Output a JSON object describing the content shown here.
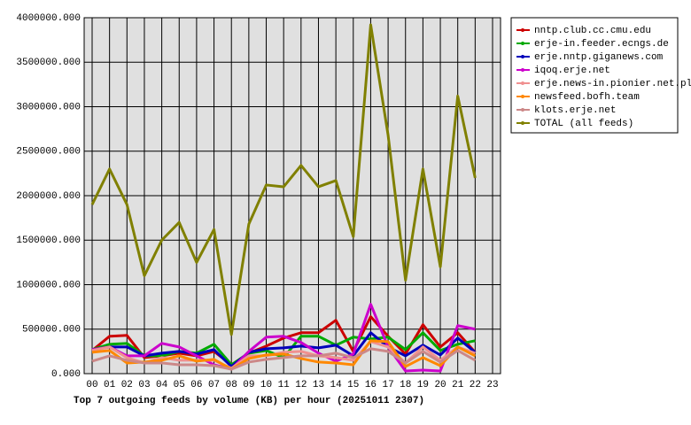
{
  "chart_data": {
    "type": "line",
    "title": "Top 7 outgoing feeds by volume (KB) per hour (20251011 2307)",
    "categories": [
      "00",
      "01",
      "02",
      "03",
      "04",
      "05",
      "06",
      "07",
      "08",
      "09",
      "10",
      "11",
      "12",
      "13",
      "14",
      "15",
      "16",
      "17",
      "18",
      "19",
      "20",
      "21",
      "22",
      "23"
    ],
    "ylim": [
      0,
      4000000
    ],
    "yticks": [
      {
        "value": 0,
        "label": "0.000"
      },
      {
        "value": 500000,
        "label": "500000.000"
      },
      {
        "value": 1000000,
        "label": "1000000.000"
      },
      {
        "value": 1500000,
        "label": "1500000.000"
      },
      {
        "value": 2000000,
        "label": "2000000.000"
      },
      {
        "value": 2500000,
        "label": "2500000.000"
      },
      {
        "value": 3000000,
        "label": "3000000.000"
      },
      {
        "value": 3500000,
        "label": "3500000.000"
      },
      {
        "value": 4000000,
        "label": "4000000.000"
      }
    ],
    "grid": true,
    "legend": "right",
    "series": [
      {
        "name": "nntp.club.cc.cmu.edu",
        "color": "#cc0000",
        "values": [
          260000,
          420000,
          430000,
          180000,
          200000,
          230000,
          200000,
          250000,
          100000,
          230000,
          310000,
          400000,
          460000,
          460000,
          600000,
          250000,
          640000,
          420000,
          220000,
          550000,
          300000,
          460000,
          240000,
          null
        ]
      },
      {
        "name": "erje-in.feeder.ecngs.de",
        "color": "#00aa00",
        "values": [
          270000,
          330000,
          340000,
          200000,
          200000,
          250000,
          230000,
          330000,
          100000,
          230000,
          260000,
          180000,
          420000,
          420000,
          320000,
          410000,
          390000,
          410000,
          270000,
          460000,
          260000,
          330000,
          370000,
          null
        ]
      },
      {
        "name": "erje.nntp.giganews.com",
        "color": "#0000bb",
        "values": [
          270000,
          300000,
          300000,
          200000,
          230000,
          250000,
          220000,
          270000,
          80000,
          240000,
          280000,
          290000,
          310000,
          290000,
          320000,
          200000,
          460000,
          300000,
          200000,
          320000,
          210000,
          400000,
          240000,
          null
        ]
      },
      {
        "name": "iqoq.erje.net",
        "color": "#cc00cc",
        "values": [
          270000,
          300000,
          200000,
          200000,
          340000,
          300000,
          200000,
          100000,
          50000,
          250000,
          410000,
          420000,
          350000,
          230000,
          140000,
          220000,
          780000,
          300000,
          30000,
          40000,
          30000,
          540000,
          500000,
          null
        ]
      },
      {
        "name": "erje.news-in.pionier.net.pl",
        "color": "#f09090",
        "values": [
          260000,
          300000,
          180000,
          120000,
          180000,
          150000,
          150000,
          150000,
          60000,
          200000,
          200000,
          240000,
          250000,
          200000,
          180000,
          150000,
          360000,
          300000,
          120000,
          300000,
          150000,
          300000,
          230000,
          null
        ]
      },
      {
        "name": "newsfeed.bofh.team",
        "color": "#ff8800",
        "values": [
          240000,
          260000,
          120000,
          130000,
          150000,
          200000,
          140000,
          160000,
          50000,
          170000,
          210000,
          220000,
          170000,
          130000,
          120000,
          100000,
          370000,
          360000,
          80000,
          180000,
          90000,
          300000,
          200000,
          null
        ]
      },
      {
        "name": "klots.erje.net",
        "color": "#cc8888",
        "values": [
          140000,
          200000,
          150000,
          120000,
          120000,
          100000,
          100000,
          90000,
          50000,
          130000,
          160000,
          180000,
          200000,
          200000,
          230000,
          180000,
          280000,
          250000,
          120000,
          250000,
          130000,
          260000,
          150000,
          null
        ]
      },
      {
        "name": "TOTAL (all feeds)",
        "color": "#808000",
        "values": [
          1900000,
          2300000,
          1900000,
          1100000,
          1500000,
          1700000,
          1250000,
          1620000,
          440000,
          1680000,
          2120000,
          2100000,
          2340000,
          2100000,
          2170000,
          1540000,
          3920000,
          2680000,
          1050000,
          2300000,
          1200000,
          3120000,
          2200000,
          null
        ]
      }
    ]
  }
}
